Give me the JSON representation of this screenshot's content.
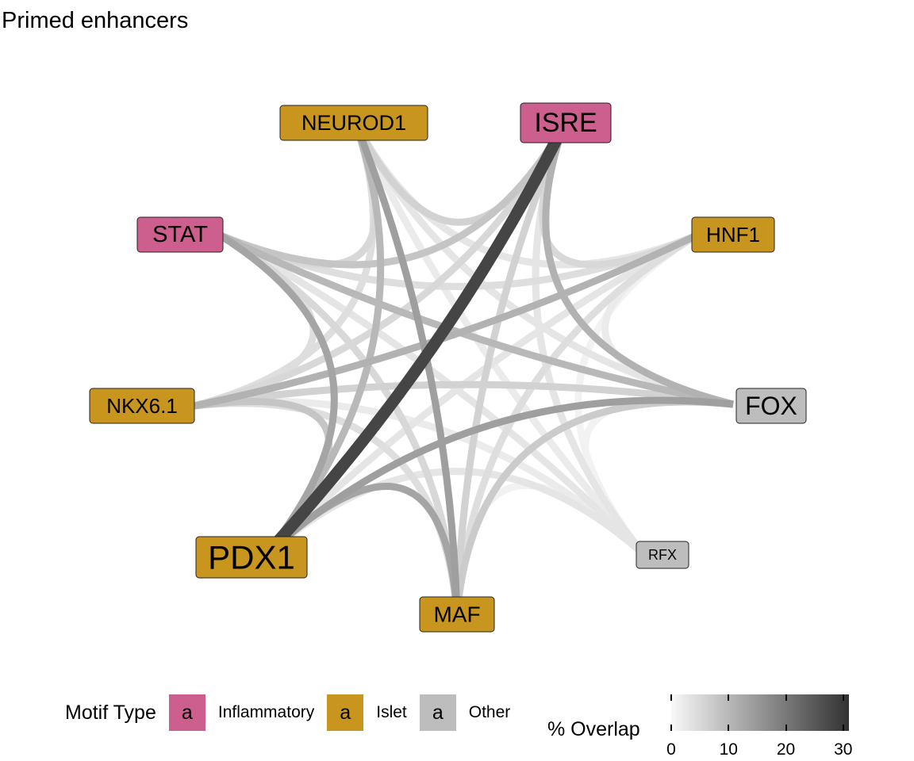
{
  "title": "Primed enhancers",
  "colors": {
    "inflammatory": "#CC5F8E",
    "islet": "#C8951E",
    "other": "#BDBDBD"
  },
  "nodes": [
    {
      "id": "NEUROD1",
      "label": "NEUROD1",
      "type": "islet",
      "size": "medium"
    },
    {
      "id": "ISRE",
      "label": "ISRE",
      "type": "inflammatory",
      "size": "large"
    },
    {
      "id": "HNF1",
      "label": "HNF1",
      "type": "islet",
      "size": "small"
    },
    {
      "id": "FOX",
      "label": "FOX",
      "type": "other",
      "size": "large"
    },
    {
      "id": "RFX",
      "label": "RFX",
      "type": "other",
      "size": "tiny"
    },
    {
      "id": "MAF",
      "label": "MAF",
      "type": "islet",
      "size": "medium"
    },
    {
      "id": "PDX1",
      "label": "PDX1",
      "type": "islet",
      "size": "xlarge"
    },
    {
      "id": "NKX6.1",
      "label": "NKX6.1",
      "type": "islet",
      "size": "medium"
    },
    {
      "id": "STAT",
      "label": "STAT",
      "type": "inflammatory",
      "size": "medium"
    }
  ],
  "edges": [
    {
      "source": "ISRE",
      "target": "PDX1",
      "overlap": 28
    },
    {
      "source": "NEUROD1",
      "target": "MAF",
      "overlap": 14
    },
    {
      "source": "STAT",
      "target": "PDX1",
      "overlap": 13
    },
    {
      "source": "PDX1",
      "target": "FOX",
      "overlap": 14
    },
    {
      "source": "PDX1",
      "target": "MAF",
      "overlap": 13
    },
    {
      "source": "NKX6.1",
      "target": "HNF1",
      "overlap": 11
    },
    {
      "source": "ISRE",
      "target": "FOX",
      "overlap": 11
    },
    {
      "source": "NEUROD1",
      "target": "PDX1",
      "overlap": 10
    },
    {
      "source": "STAT",
      "target": "FOX",
      "overlap": 10
    },
    {
      "source": "STAT",
      "target": "ISRE",
      "overlap": 8
    },
    {
      "source": "NKX6.1",
      "target": "PDX1",
      "overlap": 8
    },
    {
      "source": "NEUROD1",
      "target": "ISRE",
      "overlap": 6
    },
    {
      "source": "MAF",
      "target": "FOX",
      "overlap": 7
    },
    {
      "source": "ISRE",
      "target": "MAF",
      "overlap": 6
    },
    {
      "source": "NKX6.1",
      "target": "FOX",
      "overlap": 6
    },
    {
      "source": "STAT",
      "target": "MAF",
      "overlap": 5
    },
    {
      "source": "NEUROD1",
      "target": "STAT",
      "overlap": 5
    },
    {
      "source": "ISRE",
      "target": "HNF1",
      "overlap": 5
    },
    {
      "source": "NKX6.1",
      "target": "ISRE",
      "overlap": 5
    },
    {
      "source": "NEUROD1",
      "target": "NKX6.1",
      "overlap": 4
    },
    {
      "source": "STAT",
      "target": "HNF1",
      "overlap": 4
    },
    {
      "source": "STAT",
      "target": "NKX6.1",
      "overlap": 4
    },
    {
      "source": "HNF1",
      "target": "MAF",
      "overlap": 4
    },
    {
      "source": "NKX6.1",
      "target": "MAF",
      "overlap": 4
    },
    {
      "source": "NEUROD1",
      "target": "FOX",
      "overlap": 3
    },
    {
      "source": "NEUROD1",
      "target": "HNF1",
      "overlap": 3
    },
    {
      "source": "PDX1",
      "target": "RFX",
      "overlap": 3
    },
    {
      "source": "ISRE",
      "target": "RFX",
      "overlap": 3
    },
    {
      "source": "HNF1",
      "target": "PDX1",
      "overlap": 3
    },
    {
      "source": "STAT",
      "target": "RFX",
      "overlap": 3
    },
    {
      "source": "NKX6.1",
      "target": "RFX",
      "overlap": 2
    },
    {
      "source": "HNF1",
      "target": "FOX",
      "overlap": 2
    },
    {
      "source": "NEUROD1",
      "target": "RFX",
      "overlap": 2
    },
    {
      "source": "MAF",
      "target": "RFX",
      "overlap": 1
    },
    {
      "source": "FOX",
      "target": "RFX",
      "overlap": 1
    },
    {
      "source": "HNF1",
      "target": "RFX",
      "overlap": 1
    }
  ],
  "legend": {
    "motif_title": "Motif Type",
    "key_glyph": "a",
    "items": [
      {
        "label": "Inflammatory",
        "type": "inflammatory"
      },
      {
        "label": "Islet",
        "type": "islet"
      },
      {
        "label": "Other",
        "type": "other"
      }
    ],
    "overlap_title": "% Overlap",
    "ticks": [
      "0",
      "10",
      "20",
      "30"
    ],
    "scale_min": 0,
    "scale_max": 31
  }
}
